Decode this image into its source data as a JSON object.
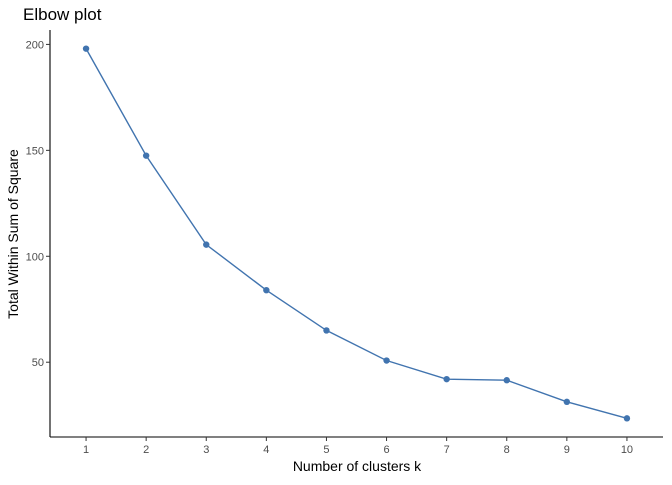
{
  "chart_data": {
    "type": "line",
    "title": "Elbow plot",
    "xlabel": "Number of clusters k",
    "ylabel": "Total Within Sum of Square",
    "x": [
      1,
      2,
      3,
      4,
      5,
      6,
      7,
      8,
      9,
      10
    ],
    "series": [
      {
        "values": [
          198,
          147.5,
          105.5,
          84,
          65,
          50.8,
          42,
          41.5,
          31.3,
          23.5
        ],
        "color": "#4174AF"
      }
    ],
    "x_ticks": [
      "1",
      "2",
      "3",
      "4",
      "5",
      "6",
      "7",
      "8",
      "9",
      "10"
    ],
    "y_ticks": [
      50,
      100,
      150,
      200
    ],
    "xlim": [
      0.4,
      10.6
    ],
    "ylim": [
      14.7,
      206.8
    ],
    "grid": false,
    "legend": "none"
  }
}
